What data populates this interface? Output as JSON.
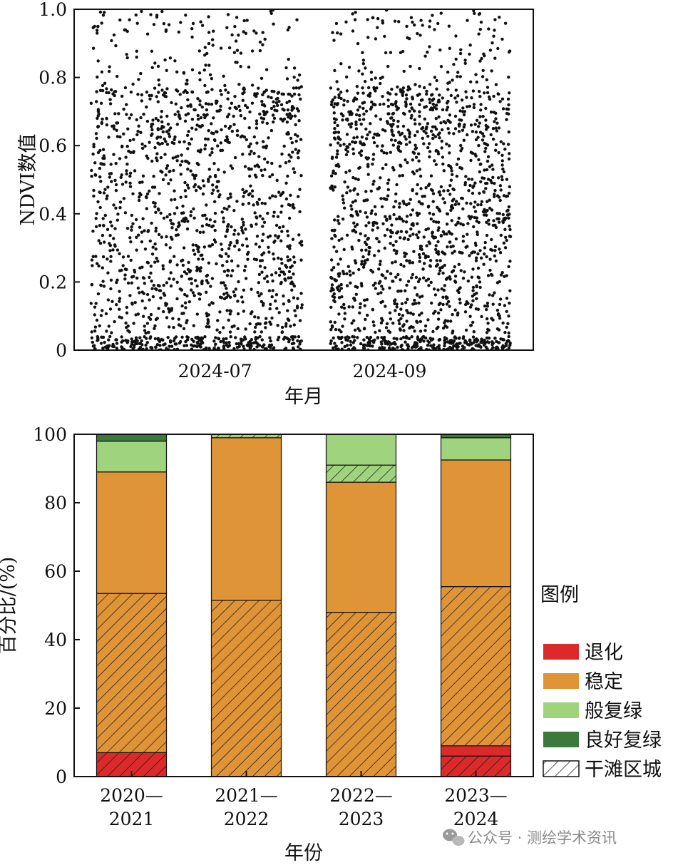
{
  "chart_data": [
    {
      "type": "scatter",
      "xlabel": "年月",
      "ylabel": "NDVI数值",
      "ylim": [
        0,
        1.0
      ],
      "yticks": [
        "0",
        "0.2",
        "0.4",
        "0.6",
        "0.8",
        "1.0"
      ],
      "xticks": [
        "2024-07",
        "2024-09"
      ],
      "series": [
        {
          "color": "#111111",
          "clusters": [
            {
              "x_start": "2024-06-01",
              "x_end": "2024-08-15",
              "points": 1600
            },
            {
              "x_start": "2024-08-25",
              "x_end": "2024-10-28",
              "points": 1700
            }
          ],
          "y_range": [
            0,
            1.0
          ]
        }
      ],
      "grid": false
    },
    {
      "type": "bar",
      "stacked": true,
      "xlabel": "年份",
      "ylabel": "百分比/(%)",
      "ylim": [
        0,
        100
      ],
      "yticks": [
        "0",
        "20",
        "40",
        "60",
        "80",
        "100"
      ],
      "categories": [
        [
          "2020—",
          "2021"
        ],
        [
          "2021—",
          "2022"
        ],
        [
          "2022—",
          "2023"
        ],
        [
          "2023—",
          "2024"
        ]
      ],
      "legend_title": "图例",
      "legend_position": "right",
      "legend": [
        {
          "label": "退化",
          "color": "#dc2a2a",
          "hatch": false
        },
        {
          "label": "稳定",
          "color": "#e09438",
          "hatch": false
        },
        {
          "label": "般复绿",
          "color": "#9fd37d",
          "hatch": false
        },
        {
          "label": "良好复绿",
          "color": "#3b7a3c",
          "hatch": false
        },
        {
          "label": "干滩区城",
          "color": "#ffffff",
          "hatch": true
        }
      ],
      "bars": [
        {
          "segments": [
            {
              "class": "退化",
              "from": 0,
              "to": 7,
              "hatch": true
            },
            {
              "class": "稳定",
              "from": 7,
              "to": 53.5,
              "hatch": true
            },
            {
              "class": "稳定",
              "from": 53.5,
              "to": 89,
              "hatch": false
            },
            {
              "class": "般复绿",
              "from": 89,
              "to": 98,
              "hatch": false
            },
            {
              "class": "良好复绿",
              "from": 98,
              "to": 100,
              "hatch": false
            }
          ]
        },
        {
          "segments": [
            {
              "class": "稳定",
              "from": 0,
              "to": 51.5,
              "hatch": true
            },
            {
              "class": "稳定",
              "from": 51.5,
              "to": 99,
              "hatch": false
            },
            {
              "class": "般复绿",
              "from": 99,
              "to": 100,
              "hatch": true
            }
          ]
        },
        {
          "segments": [
            {
              "class": "稳定",
              "from": 0,
              "to": 48,
              "hatch": true
            },
            {
              "class": "稳定",
              "from": 48,
              "to": 86,
              "hatch": false
            },
            {
              "class": "般复绿",
              "from": 86,
              "to": 91,
              "hatch": true
            },
            {
              "class": "般复绿",
              "from": 91,
              "to": 100,
              "hatch": false
            }
          ]
        },
        {
          "segments": [
            {
              "class": "退化",
              "from": 0,
              "to": 6,
              "hatch": true
            },
            {
              "class": "退化",
              "from": 6,
              "to": 9,
              "hatch": false
            },
            {
              "class": "稳定",
              "from": 9,
              "to": 55.5,
              "hatch": true
            },
            {
              "class": "稳定",
              "from": 55.5,
              "to": 92.5,
              "hatch": false
            },
            {
              "class": "般复绿",
              "from": 92.5,
              "to": 99,
              "hatch": false
            },
            {
              "class": "良好复绿",
              "from": 99,
              "to": 100,
              "hatch": false
            }
          ]
        }
      ]
    }
  ],
  "watermark": {
    "text": "公众号 · 测绘学术资讯",
    "icon": "wechat-icon"
  }
}
